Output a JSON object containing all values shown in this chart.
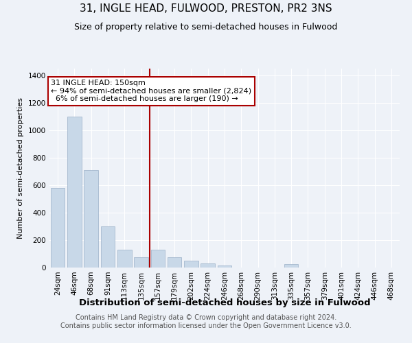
{
  "title": "31, INGLE HEAD, FULWOOD, PRESTON, PR2 3NS",
  "subtitle": "Size of property relative to semi-detached houses in Fulwood",
  "xlabel": "Distribution of semi-detached houses by size in Fulwood",
  "ylabel": "Number of semi-detached properties",
  "footer_line1": "Contains HM Land Registry data © Crown copyright and database right 2024.",
  "footer_line2": "Contains public sector information licensed under the Open Government Licence v3.0.",
  "categories": [
    "24sqm",
    "46sqm",
    "68sqm",
    "91sqm",
    "113sqm",
    "135sqm",
    "157sqm",
    "179sqm",
    "202sqm",
    "224sqm",
    "246sqm",
    "268sqm",
    "290sqm",
    "313sqm",
    "335sqm",
    "357sqm",
    "379sqm",
    "401sqm",
    "424sqm",
    "446sqm",
    "468sqm"
  ],
  "values": [
    580,
    1100,
    710,
    300,
    130,
    75,
    130,
    75,
    50,
    30,
    15,
    0,
    0,
    0,
    25,
    0,
    0,
    0,
    0,
    0,
    0
  ],
  "bar_color": "#c8d8e8",
  "bar_edge_color": "#9ab0c8",
  "vline_x_index": 6,
  "property_size": "150sqm",
  "pct_smaller": 94,
  "count_smaller": 2824,
  "pct_larger": 6,
  "count_larger": 190,
  "vline_color": "#aa0000",
  "ylim": [
    0,
    1450
  ],
  "yticks": [
    0,
    200,
    400,
    600,
    800,
    1000,
    1200,
    1400
  ],
  "background_color": "#eef2f8",
  "grid_color": "#ffffff",
  "title_fontsize": 11,
  "subtitle_fontsize": 9,
  "ylabel_fontsize": 8,
  "xlabel_fontsize": 9.5,
  "tick_fontsize": 7.5,
  "footer_fontsize": 7,
  "ann_fontsize": 8
}
